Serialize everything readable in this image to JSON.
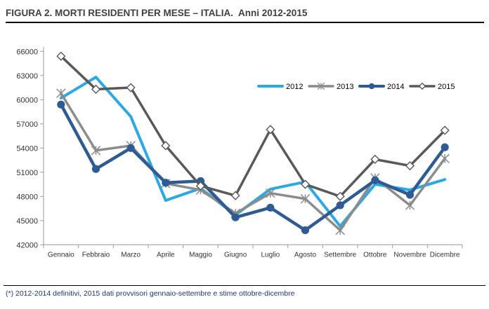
{
  "header": {
    "title_main": "FIGURA 2. MORTI RESIDENTI PER MESE – ITALIA.",
    "title_suffix": "Anni 2012-2015"
  },
  "footnote": "(*) 2012-2014 definitivi, 2015 dati provvisori gennaio-settembre e stime ottobre-dicembre",
  "colors": {
    "title_text": "#404040",
    "axis_line": "#999999",
    "axis_label": "#333333",
    "footnote_text": "#1F3864",
    "rule": "#000000"
  },
  "chart_data": {
    "type": "line",
    "title": "FIGURA 2. MORTI RESIDENTI PER MESE – ITALIA. Anni 2012-2015",
    "categories": [
      "Gennaio",
      "Febbraio",
      "Marzo",
      "Aprile",
      "Maggio",
      "Giugno",
      "Luglio",
      "Agosto",
      "Settembre",
      "Ottobre",
      "Novembre",
      "Dicembre"
    ],
    "series": [
      {
        "name": "2012",
        "color": "#2DA9E1",
        "marker": "none",
        "line_width": 4,
        "values": [
          60200,
          62800,
          57900,
          47500,
          49000,
          45700,
          48900,
          49800,
          44300,
          49500,
          48800,
          50100
        ]
      },
      {
        "name": "2013",
        "color": "#8C8C8C",
        "marker": "asterisk",
        "line_width": 3.5,
        "values": [
          60800,
          53700,
          54300,
          49600,
          48800,
          45900,
          48400,
          47700,
          43800,
          50300,
          46900,
          52700
        ]
      },
      {
        "name": "2014",
        "color": "#2F5B93",
        "marker": "circle",
        "line_width": 4.5,
        "values": [
          59400,
          51400,
          54000,
          49700,
          49900,
          45400,
          46600,
          43800,
          46900,
          50000,
          48200,
          54100
        ]
      },
      {
        "name": "2015",
        "color": "#595959",
        "marker": "diamond-open",
        "line_width": 3.5,
        "values": [
          65400,
          61300,
          61500,
          54300,
          49300,
          48100,
          56300,
          49500,
          48000,
          52600,
          51800,
          56200
        ]
      }
    ],
    "ylim": [
      42000,
      66000
    ],
    "ytick_step": 3000,
    "yticks": [
      66000,
      63000,
      60000,
      57000,
      54000,
      51000,
      48000,
      45000,
      42000
    ],
    "xlabel": "",
    "ylabel": "",
    "grid": false,
    "legend_position": "inside-top-right",
    "legend_labels": [
      "2012",
      "2013",
      "2014",
      "2015"
    ]
  }
}
